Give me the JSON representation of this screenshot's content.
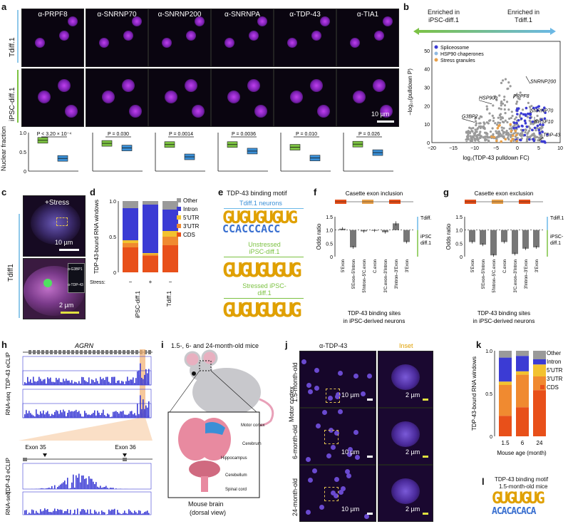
{
  "panel_labels": {
    "a": "a",
    "b": "b",
    "c": "c",
    "d": "d",
    "e": "e",
    "f": "f",
    "g": "g",
    "h": "h",
    "i": "i",
    "j": "j",
    "k": "k",
    "l": "l"
  },
  "a": {
    "columns": [
      "α-PRPF8",
      "α-SNRNP70",
      "α-SNRNP200",
      "α-SNRNPA",
      "α-TDP-43",
      "α-TIA1"
    ],
    "rows": [
      "Tdiff.1",
      "iPSC-diff.1"
    ],
    "scale": "10 µm",
    "ylabel": "Nuclear fraction",
    "pvalues": [
      "P < 3.20 × 10⁻⁴",
      "P = 0.030",
      "P = 0.0014",
      "P = 0.0036",
      "P = 0.010",
      "P = 0.026"
    ],
    "colors": {
      "tdiff": "#7cc242",
      "ipsc": "#3a8fd6"
    }
  },
  "b": {
    "left_title": "Enriched in\niPSC-diff.1",
    "left_title_l1": "Enriched in",
    "left_title_l2": "iPSC-diff.1",
    "right_title_l1": "Enriched in",
    "right_title_l2": "Tdiff.1",
    "legend": [
      "Spliceosome",
      "HSP90 chaperones",
      "Stress granules"
    ],
    "legend_colors": [
      "#3b3bd4",
      "#8fb8e0",
      "#e8a04a"
    ],
    "ylabel": "−log₁₀(pulldown P)",
    "xlabel": "log₂(TDP-43 pulldown FC)",
    "xticks": [
      "−20",
      "−15",
      "−10",
      "−5",
      "0",
      "5",
      "10"
    ],
    "yticks": [
      "0",
      "10",
      "20",
      "30",
      "40",
      "50"
    ],
    "genes": [
      "SNRNP200",
      "PRPF8",
      "HSP90α",
      "SNRNP70",
      "G3BP2",
      "SRSF10",
      "TDP-43"
    ]
  },
  "c": {
    "title": "+Stress",
    "row": "Tdiff1",
    "scale1": "10 µm",
    "scale2": "2 µm",
    "inset1": "α-G3BP1",
    "inset2": "α-TDP-43"
  },
  "d": {
    "ylabel": "TDP-43-bound RNA windows",
    "legend": [
      "Other",
      "Intron",
      "5′UTR",
      "3′UTR",
      "CDS"
    ],
    "stress_label": "Stress:",
    "stress_values": [
      "−",
      "+",
      "−"
    ],
    "groups": [
      "iPSC-diff.1",
      "Tdiff.1"
    ],
    "yticks": [
      "0",
      "0.5",
      "1.0"
    ]
  },
  "e": {
    "title": "TDP-43 binding motif",
    "subs": [
      "Tdiff.1 neurons",
      "Unstressed iPSC-diff.1",
      "Stressed iPSC-diff.1"
    ],
    "motif1": "GUGUGUGUG",
    "motif2": "GUGUGUGUG",
    "motif3": "GUGUGUGUG",
    "motif1b": "CCACCCACC"
  },
  "f": {
    "title": "Casette exon inclusion",
    "ylabel": "Odds ratio",
    "right1": "Tdiff.1",
    "right2": "iPSC-",
    "right2b": "diff.1",
    "xlabel1": "TDP-43 binding sites",
    "xlabel2": "in iPSC-derived neurons",
    "yticks": [
      "0",
      "0.5",
      "1.0",
      "1.5"
    ],
    "cats": [
      "5′Exon",
      "5′Exon–5′Intron",
      "5′Intron–5′C.exon",
      "C.exon",
      "3′C.exon–3′Intron",
      "3′Intron–3′Exon",
      "3′Exon"
    ]
  },
  "g": {
    "title": "Casette exon exclusion",
    "ylabel": "Odds ratio",
    "right1": "Tdiff.1",
    "right2": "iPSC-",
    "right2b": "diff.1",
    "xlabel1": "TDP-43 binding sites",
    "xlabel2": "in iPSC-derived neurons",
    "yticks": [
      "0",
      "0.5",
      "1.0",
      "1.5"
    ],
    "cats": [
      "5′Exon",
      "5′Exon–5′Intron",
      "5′Intron–5′C.exon",
      "C.exon",
      "3′C.exon–3′Intron",
      "3′Intron–3′Exon",
      "3′Exon"
    ]
  },
  "h": {
    "gene": "AGRN",
    "track1": "TDP-43 eCLIP",
    "track2": "RNA-seq",
    "exon35": "Exon 35",
    "exon36": "Exon 36"
  },
  "i": {
    "title": "1.5-, 6- and 24-month-old mice",
    "labels": [
      "Motor cortex",
      "Cerebrum",
      "Hippocampus",
      "Cerebellum",
      "Spinal cord"
    ],
    "caption1": "Mouse brain",
    "caption2": "(dorsal view)"
  },
  "j": {
    "col1": "α-TDP-43",
    "col2": "Inset",
    "rows": [
      "1.5-month-old",
      "6-month-old",
      "24-month-old"
    ],
    "region": "Motor cortex",
    "scale1": "10 µm",
    "scale2": "2 µm"
  },
  "k": {
    "ylabel": "TDP-43-bound RNA windows",
    "legend": [
      "Other",
      "Intron",
      "5′UTR",
      "3′UTR",
      "CDS"
    ],
    "xlabel": "Mouse age (month)",
    "xticks": [
      "1.5",
      "6",
      "24"
    ],
    "yticks": [
      "0",
      "0.5",
      "1.0"
    ]
  },
  "l": {
    "title1": "TDP-43 binding motif",
    "title2": "1.5-month-old mice",
    "motif": "GUGUGUG",
    "motif2": "ACACACACA"
  }
}
